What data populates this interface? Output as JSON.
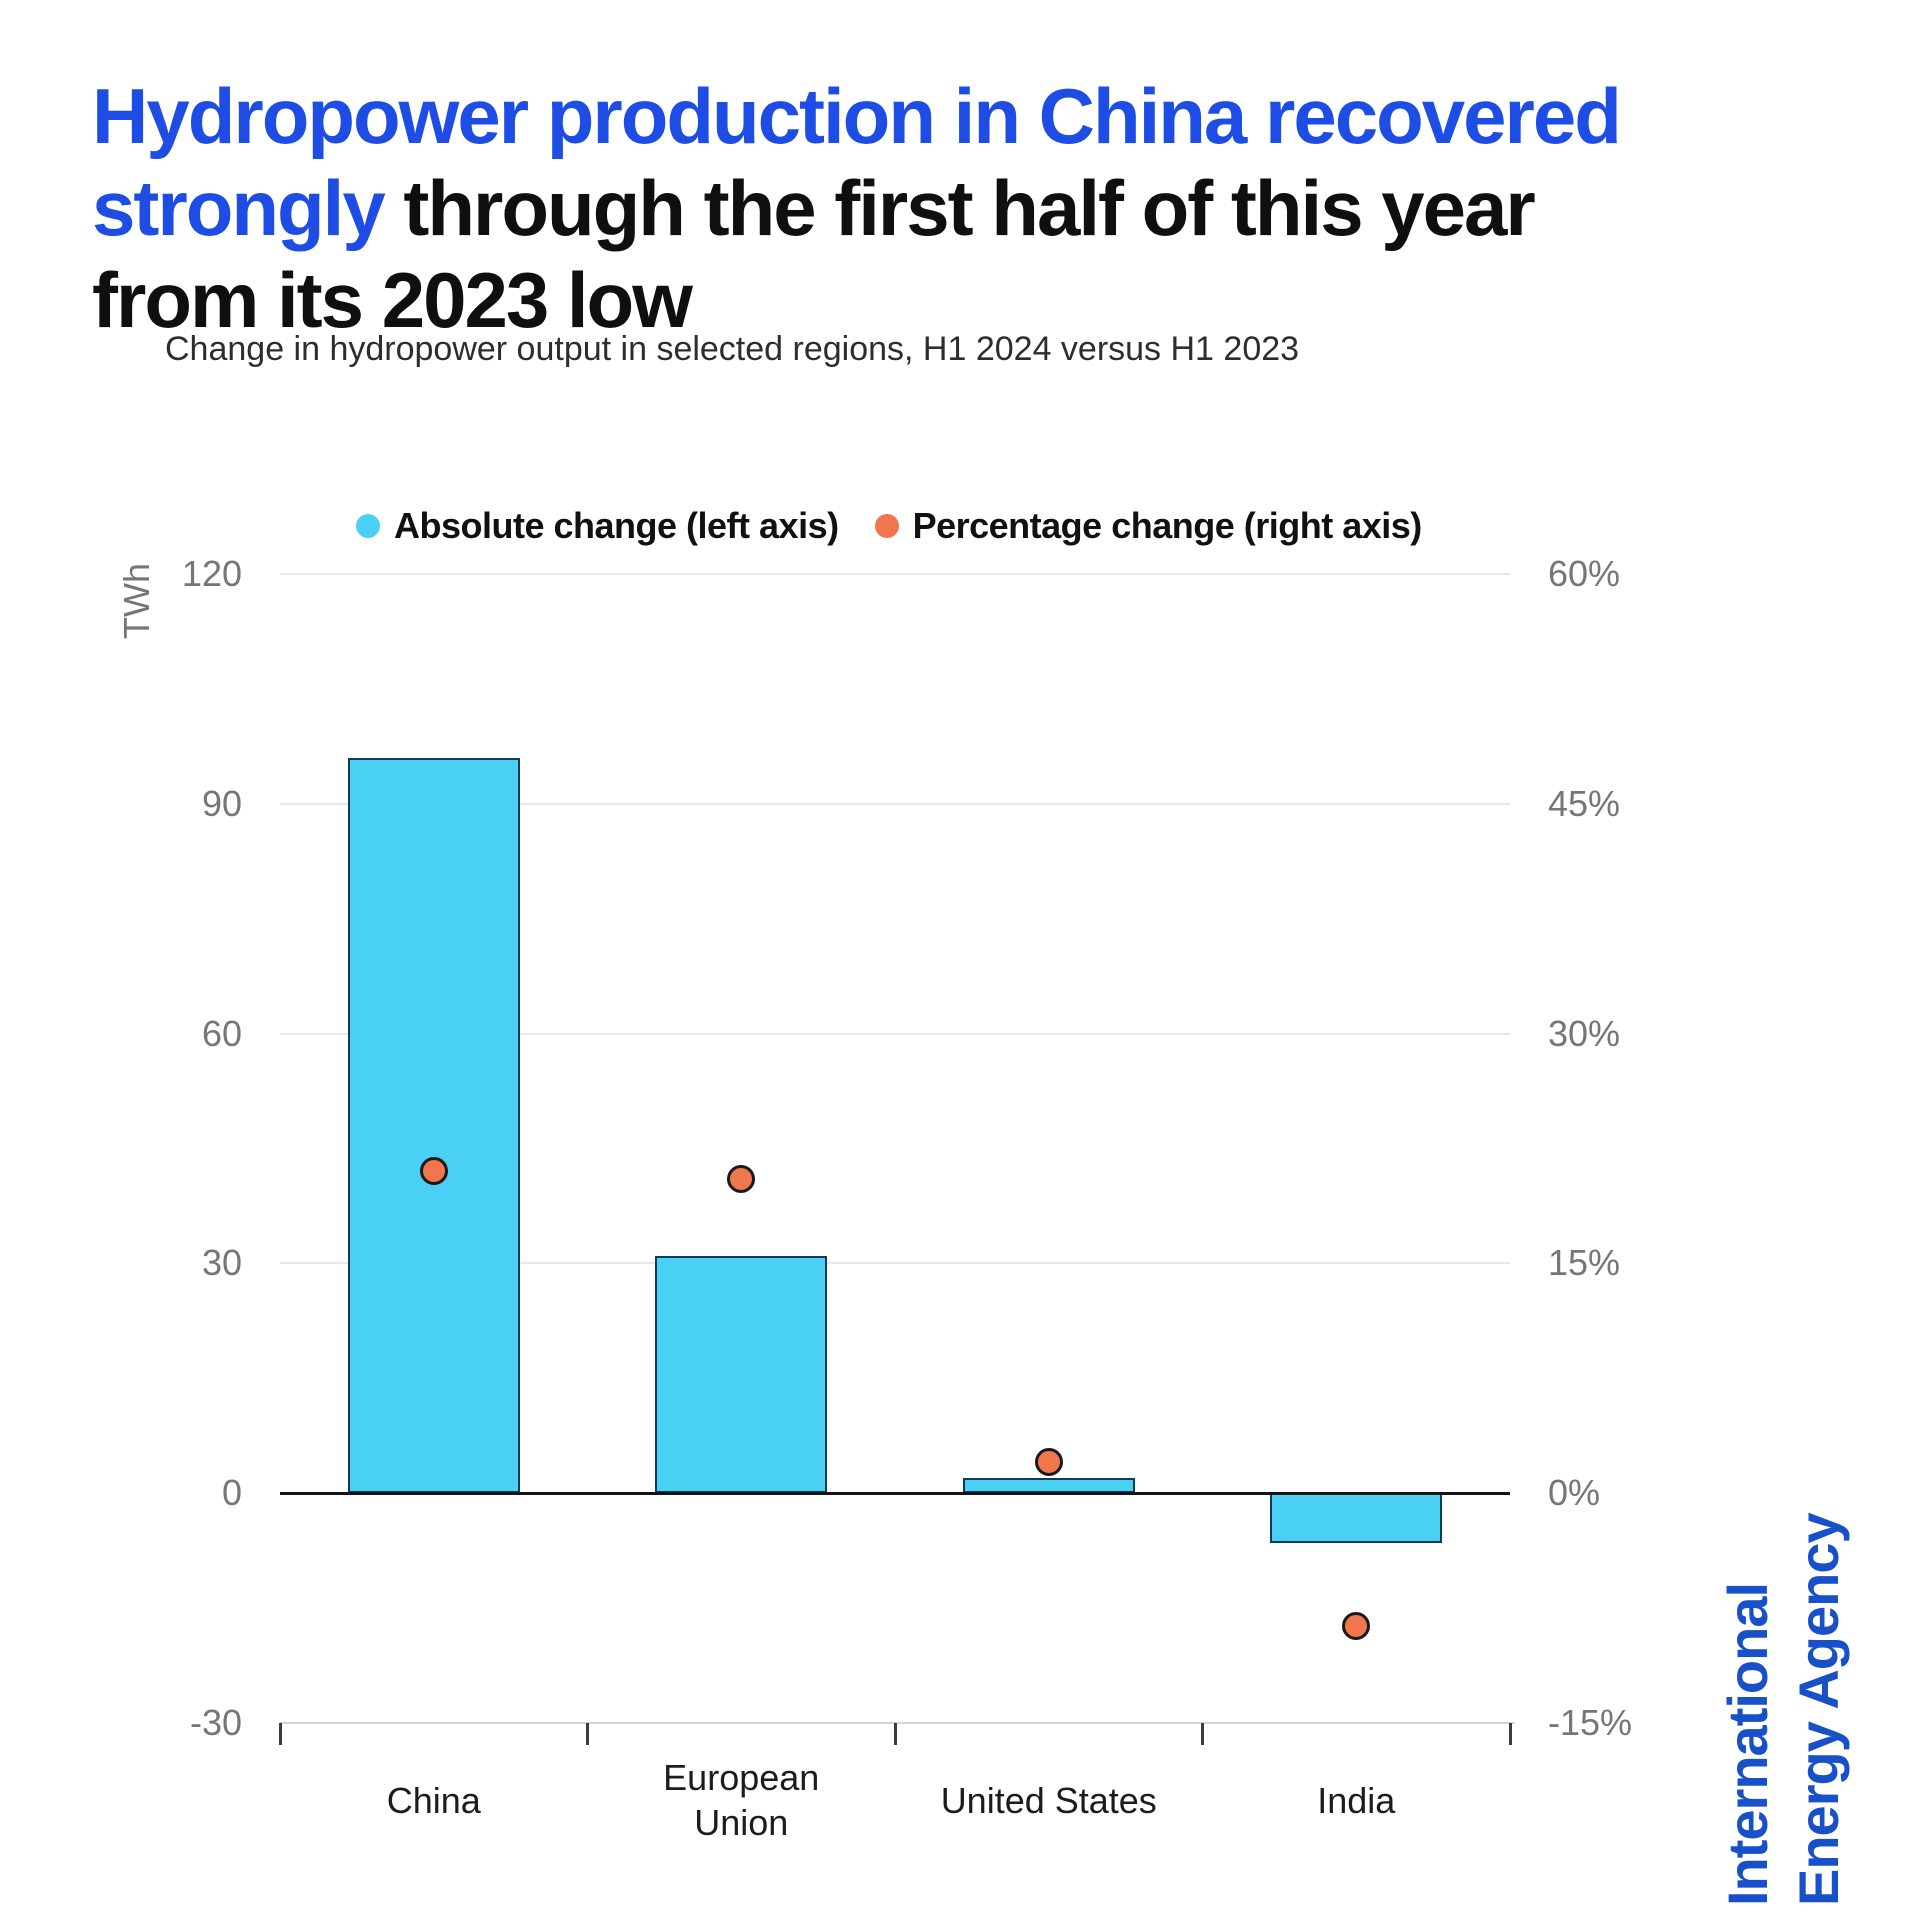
{
  "title": {
    "line1": {
      "highlight": "Hydropower production in China recovered"
    },
    "line2": {
      "highlight": "strongly",
      "rest": " through the first half of this year"
    },
    "line3": {
      "rest": "from its 2023 low"
    }
  },
  "subtitle": "Change in hydropower output in selected regions, H1 2024 versus H1 2023",
  "legend": {
    "items": [
      {
        "label": "Absolute change (left axis)",
        "color": "#4bd0f5"
      },
      {
        "label": "Percentage change (right axis)",
        "color": "#f0764e"
      }
    ]
  },
  "branding": {
    "line1": "International",
    "line2": "Energy Agency",
    "color": "#1750c8"
  },
  "chart_data": {
    "type": "bar",
    "subtype": "dual-axis bar + scatter",
    "title": "Change in hydropower output in selected regions, H1 2024 versus H1 2023",
    "categories": [
      "China",
      "European Union",
      "United States",
      "India"
    ],
    "series": [
      {
        "name": "Absolute change (left axis)",
        "type": "bar",
        "axis": "left",
        "unit": "TWh",
        "values": [
          96,
          31,
          2,
          -6.5
        ]
      },
      {
        "name": "Percentage change (right axis)",
        "type": "scatter",
        "axis": "right",
        "unit": "%",
        "values": [
          21,
          20.5,
          2,
          -8.7
        ]
      }
    ],
    "left_axis": {
      "label": "TWh",
      "ticks": [
        120,
        90,
        60,
        30,
        0,
        -30
      ],
      "range": [
        -30,
        120
      ]
    },
    "right_axis": {
      "label": "%",
      "ticks": [
        "60%",
        "45%",
        "30%",
        "15%",
        "0%",
        "-15%"
      ],
      "tick_values": [
        60,
        45,
        30,
        15,
        0,
        -15
      ],
      "range": [
        -15,
        60
      ]
    },
    "grid": true,
    "legend_position": "top",
    "colors": {
      "bar_fill": "#4bd0f5",
      "bar_stroke": "#0e3c55",
      "dot_fill": "#f0764e",
      "dot_stroke": "#1a1a1a",
      "gridline": "#e8e8e8",
      "zero_line": "#141414",
      "axis_text": "#767676",
      "title_highlight": "#1d4de4"
    }
  }
}
